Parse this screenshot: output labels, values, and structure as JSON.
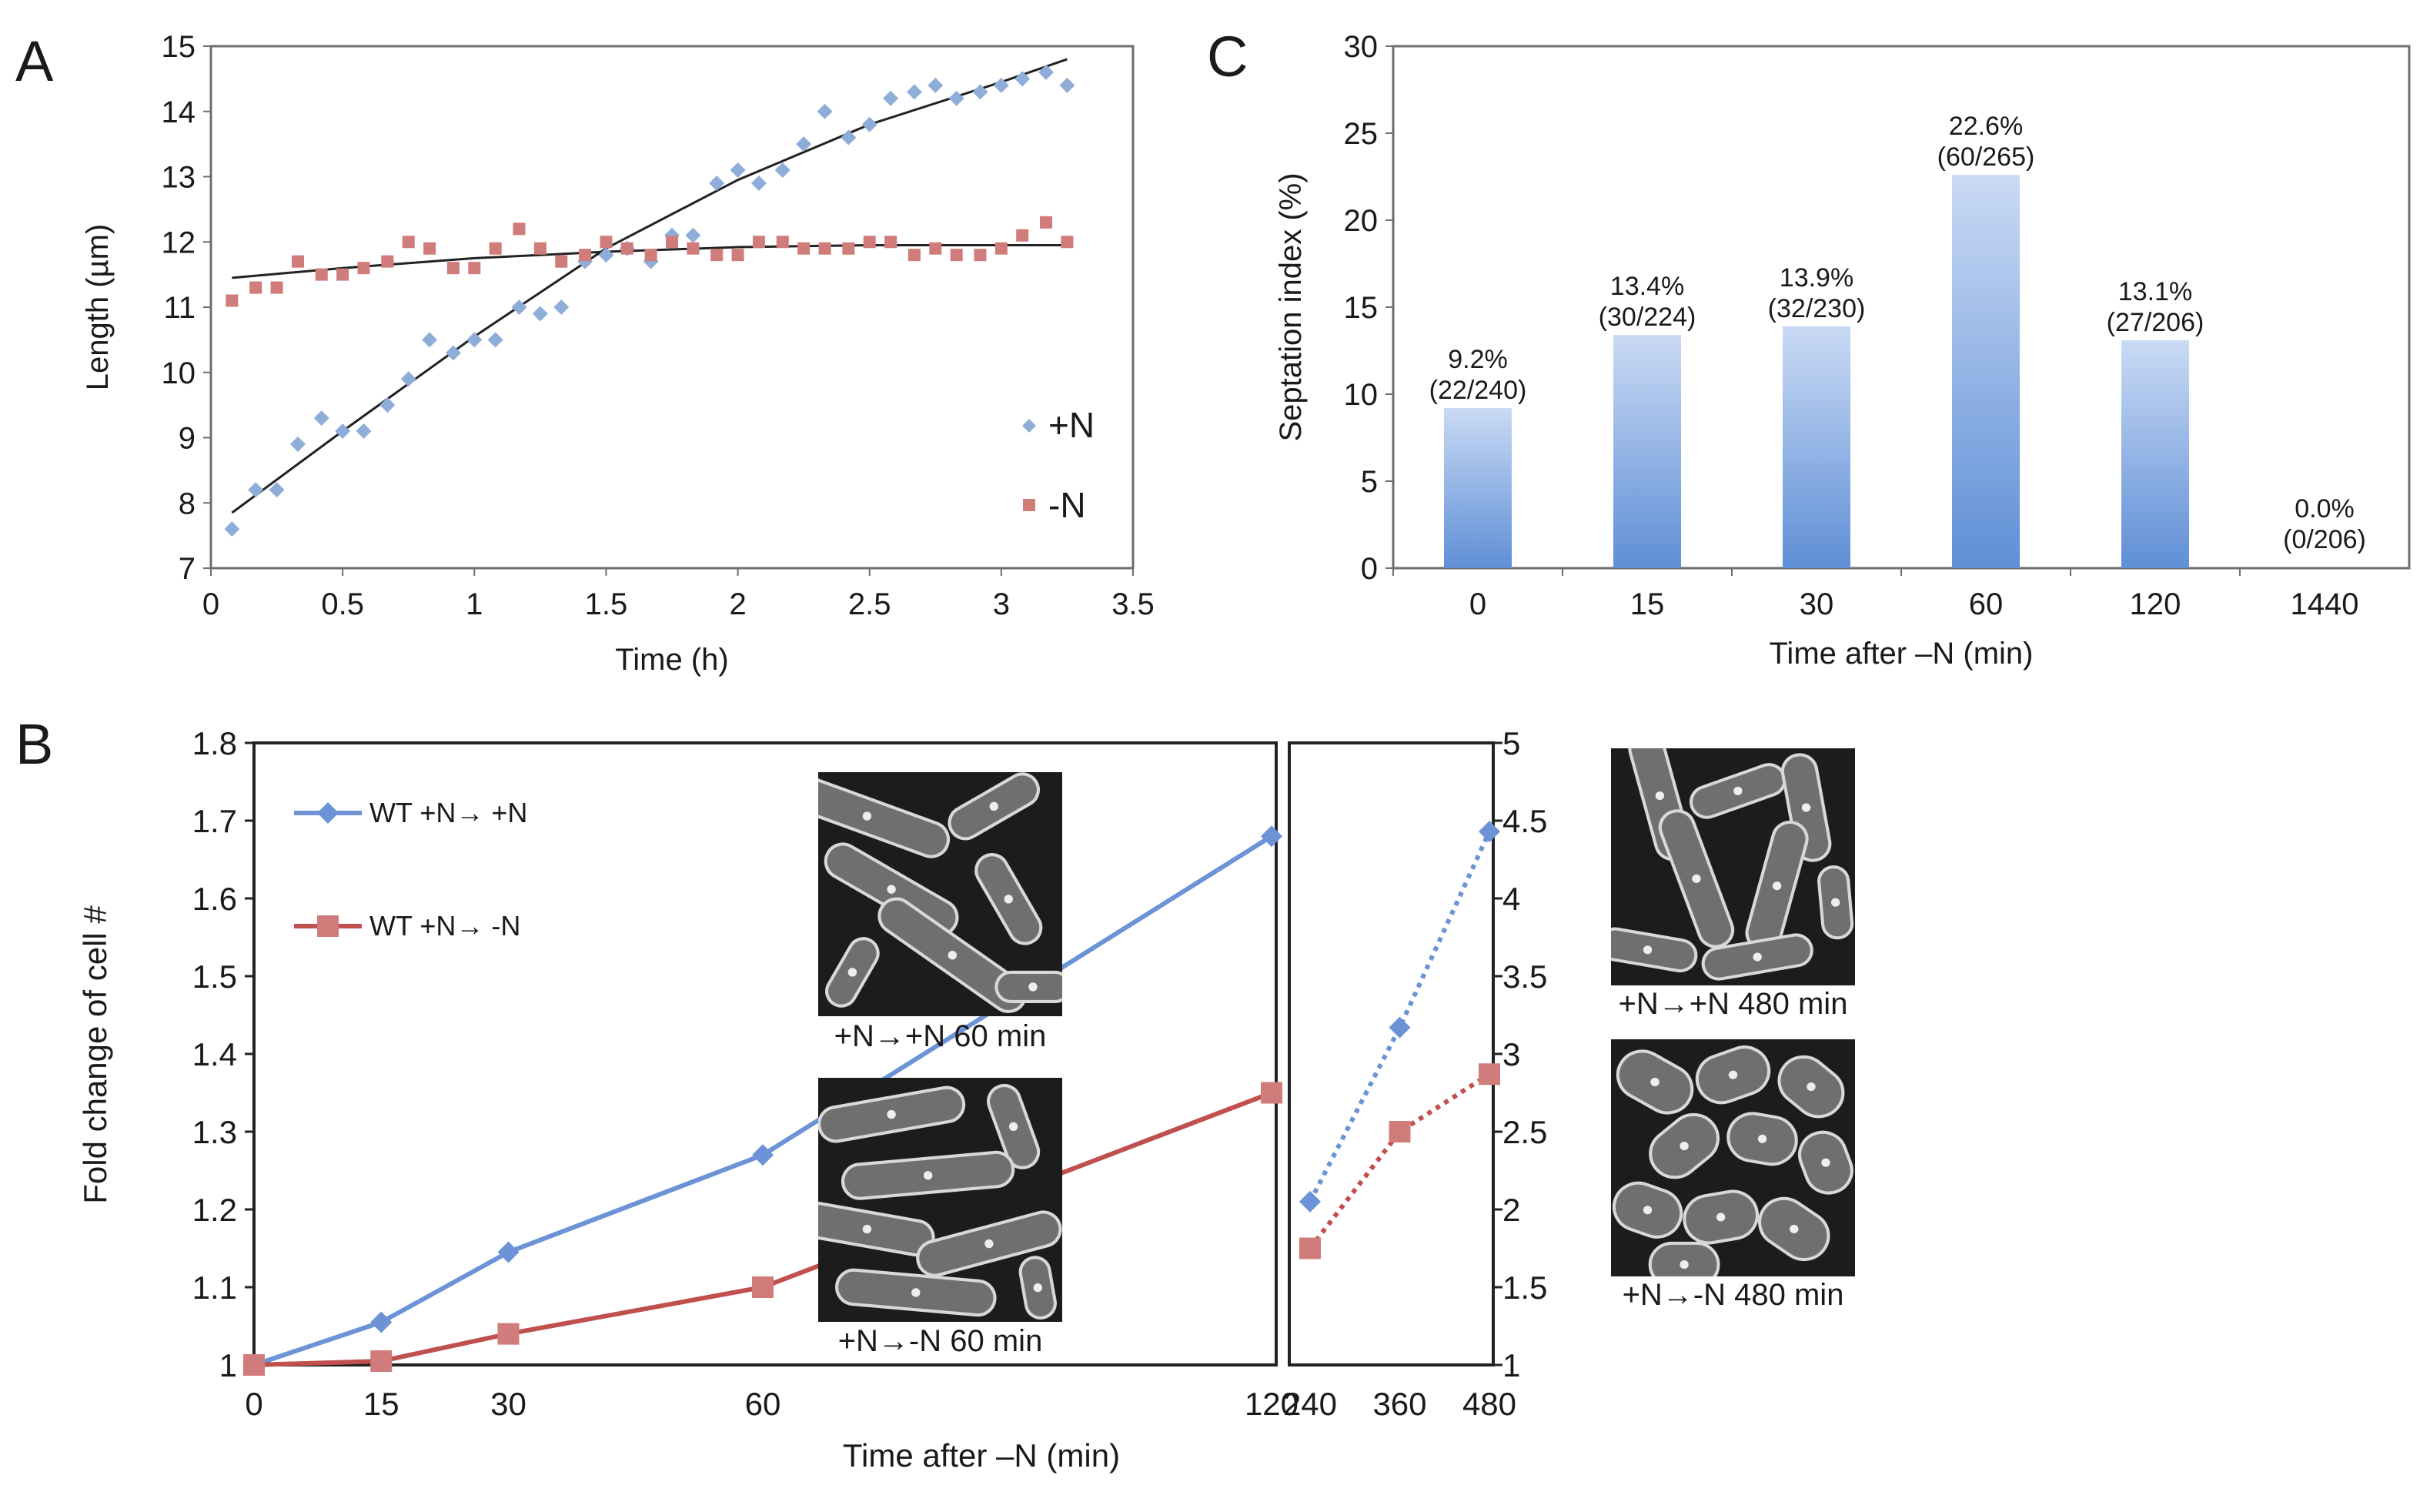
{
  "panels": {
    "a": "A",
    "b": "B",
    "c": "C"
  },
  "colors": {
    "blue": "#8fadd9",
    "blue_line": "#6b93d6",
    "red": "#d07c7a",
    "red_line": "#c0504d",
    "bar_top": "#c9daf4",
    "bar_bottom": "#5f8fd6",
    "fit": "#222222"
  },
  "chart_data": [
    {
      "id": "A",
      "type": "scatter",
      "xlabel": "Time (h)",
      "ylabel": "Length (µm)",
      "xlim": [
        0,
        3.5
      ],
      "ylim": [
        7,
        15
      ],
      "xticks": [
        "0",
        "0.5",
        "1",
        "1.5",
        "2",
        "2.5",
        "3",
        "3.5"
      ],
      "yticks": [
        "7",
        "8",
        "9",
        "10",
        "11",
        "12",
        "13",
        "14",
        "15"
      ],
      "series": [
        {
          "name": "+N",
          "marker": "diamond",
          "x": [
            0.08,
            0.17,
            0.25,
            0.33,
            0.42,
            0.5,
            0.58,
            0.67,
            0.75,
            0.83,
            0.92,
            1.0,
            1.08,
            1.17,
            1.25,
            1.33,
            1.42,
            1.5,
            1.58,
            1.67,
            1.75,
            1.83,
            1.92,
            2.0,
            2.08,
            2.17,
            2.25,
            2.33,
            2.42,
            2.5,
            2.58,
            2.67,
            2.75,
            2.83,
            2.92,
            3.0,
            3.08,
            3.17,
            3.25
          ],
          "y": [
            7.6,
            8.2,
            8.2,
            8.9,
            9.3,
            9.1,
            9.1,
            9.5,
            9.9,
            10.5,
            10.3,
            10.5,
            10.5,
            11.0,
            10.9,
            11.0,
            11.7,
            11.8,
            11.9,
            11.7,
            12.1,
            12.1,
            12.9,
            13.1,
            12.9,
            13.1,
            13.5,
            14.0,
            13.6,
            13.8,
            14.2,
            14.3,
            14.4,
            14.2,
            14.3,
            14.4,
            14.5,
            14.6,
            14.4
          ]
        },
        {
          "name": "-N",
          "marker": "square",
          "x": [
            0.08,
            0.17,
            0.25,
            0.33,
            0.42,
            0.5,
            0.58,
            0.67,
            0.75,
            0.83,
            0.92,
            1.0,
            1.08,
            1.17,
            1.25,
            1.33,
            1.42,
            1.5,
            1.58,
            1.67,
            1.75,
            1.83,
            1.92,
            2.0,
            2.08,
            2.17,
            2.25,
            2.33,
            2.42,
            2.5,
            2.58,
            2.67,
            2.75,
            2.83,
            2.92,
            3.0,
            3.08,
            3.17,
            3.25
          ],
          "y": [
            11.1,
            11.3,
            11.3,
            11.7,
            11.5,
            11.5,
            11.6,
            11.7,
            12.0,
            11.9,
            11.6,
            11.6,
            11.9,
            12.2,
            11.9,
            11.7,
            11.8,
            12.0,
            11.9,
            11.8,
            12.0,
            11.9,
            11.8,
            11.8,
            12.0,
            12.0,
            11.9,
            11.9,
            11.9,
            12.0,
            12.0,
            11.8,
            11.9,
            11.8,
            11.8,
            11.9,
            12.1,
            12.3,
            12.0
          ]
        }
      ],
      "trendlines": [
        {
          "series": "+N",
          "x": [
            0.08,
            0.5,
            1.0,
            1.5,
            2.0,
            2.5,
            3.0,
            3.25
          ],
          "y": [
            7.85,
            9.1,
            10.55,
            11.9,
            12.95,
            13.8,
            14.45,
            14.8
          ]
        },
        {
          "series": "-N",
          "x": [
            0.08,
            0.5,
            1.0,
            1.5,
            2.0,
            2.5,
            3.0,
            3.25
          ],
          "y": [
            11.45,
            11.6,
            11.75,
            11.85,
            11.92,
            11.95,
            11.95,
            11.95
          ]
        }
      ],
      "legend": [
        "+N",
        "-N"
      ],
      "legend_position": "bottom-right"
    },
    {
      "id": "C",
      "type": "bar",
      "xlabel": "Time after –N (min)",
      "ylabel": "Septation index (%)",
      "ylim": [
        0,
        30
      ],
      "yticks": [
        "0",
        "5",
        "10",
        "15",
        "20",
        "25",
        "30"
      ],
      "categories": [
        "0",
        "15",
        "30",
        "60",
        "120",
        "1440"
      ],
      "values": [
        9.2,
        13.4,
        13.9,
        22.6,
        13.1,
        0.0
      ],
      "labels": [
        "9.2%",
        "13.4%",
        "13.9%",
        "22.6%",
        "13.1%",
        "0.0%"
      ],
      "counts": [
        "(22/240)",
        "(30/224)",
        "(32/230)",
        "(60/265)",
        "(27/206)",
        "(0/206)"
      ]
    },
    {
      "id": "B",
      "type": "line",
      "xlabel": "Time after –N (min)",
      "ylabel": "Fold change of cell #",
      "left_axis": {
        "ylim": [
          1,
          1.8
        ],
        "yticks": [
          "1",
          "1.1",
          "1.2",
          "1.3",
          "1.4",
          "1.5",
          "1.6",
          "1.7",
          "1.8"
        ],
        "x": [
          0,
          15,
          30,
          60,
          120
        ],
        "xticks": [
          "0",
          "15",
          "30",
          "60",
          "120"
        ]
      },
      "right_axis": {
        "ylim": [
          1,
          5
        ],
        "yticks": [
          "1",
          "1.5",
          "2",
          "2.5",
          "3",
          "3.5",
          "4",
          "4.5",
          "5"
        ],
        "x": [
          240,
          360,
          480
        ],
        "xticks": [
          "240",
          "360",
          "480"
        ]
      },
      "series": [
        {
          "name": "WT +N→ +N",
          "left": [
            1.0,
            1.055,
            1.145,
            1.27,
            1.68
          ],
          "right": [
            2.05,
            3.17,
            4.43
          ]
        },
        {
          "name": "WT +N→ -N",
          "left": [
            1.0,
            1.005,
            1.04,
            1.1,
            1.35
          ],
          "right": [
            1.75,
            2.5,
            2.87
          ]
        }
      ],
      "legend_position": "top-left"
    }
  ],
  "micrographs": [
    {
      "name": "plate-pp60",
      "caption": "+N→+N 60 min"
    },
    {
      "name": "plate-pm60",
      "caption": "+N→-N 60 min"
    },
    {
      "name": "plate-pp480",
      "caption": "+N→+N 480 min"
    },
    {
      "name": "plate-pm480",
      "caption": "+N→-N 480 min"
    }
  ]
}
